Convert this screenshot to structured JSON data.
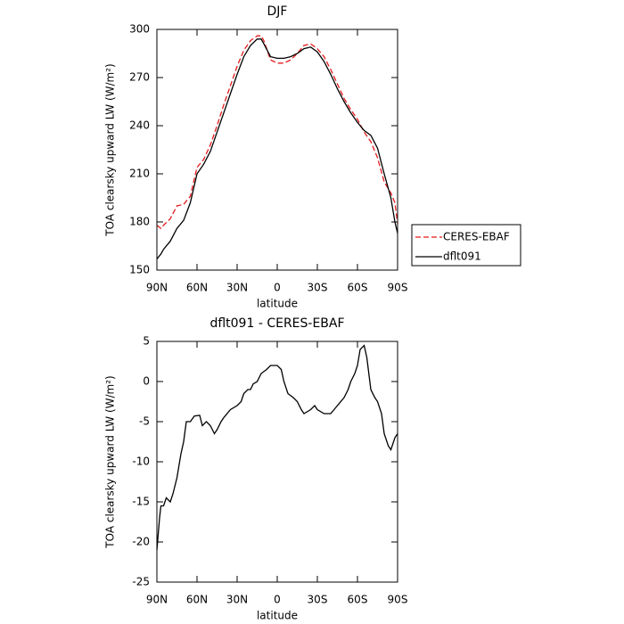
{
  "chart_data": [
    {
      "type": "line",
      "title": "DJF",
      "xlabel": "latitude",
      "ylabel": "TOA clearsky upward LW (W/m²)",
      "x": [
        90,
        87,
        85,
        80,
        75,
        70,
        65,
        60,
        55,
        50,
        45,
        40,
        35,
        30,
        25,
        20,
        15,
        12,
        10,
        5,
        0,
        -5,
        -10,
        -15,
        -20,
        -25,
        -30,
        -35,
        -40,
        -45,
        -50,
        -55,
        -60,
        -65,
        -70,
        -75,
        -80,
        -85,
        -88,
        -90
      ],
      "series": [
        {
          "name": "CERES-EBAF",
          "color": "#e41a1c",
          "dash": true,
          "values": [
            178,
            176,
            178,
            182,
            190,
            191,
            196,
            214,
            219,
            228,
            240,
            253,
            265,
            277,
            287,
            293,
            296,
            296,
            293,
            281,
            279,
            279,
            281,
            285,
            290,
            291,
            288,
            283,
            275,
            266,
            257,
            250,
            244,
            236,
            230,
            220,
            205,
            198,
            192,
            179
          ]
        },
        {
          "name": "dflt091",
          "color": "#000000",
          "dash": false,
          "values": [
            157,
            160,
            163,
            168,
            176,
            181,
            192,
            210,
            216,
            224,
            236,
            248,
            260,
            272,
            283,
            290,
            294,
            294,
            291,
            283,
            282,
            282,
            283,
            285,
            288,
            289,
            286,
            280,
            272,
            263,
            255,
            248,
            242,
            237,
            234,
            226,
            210,
            195,
            180,
            173
          ]
        }
      ],
      "xlim": [
        90,
        -90
      ],
      "xticks": [
        {
          "value": 90,
          "label": "90N"
        },
        {
          "value": 60,
          "label": "60N"
        },
        {
          "value": 30,
          "label": "30N"
        },
        0,
        {
          "value": -30,
          "label": "30S"
        },
        {
          "value": -60,
          "label": "60S"
        },
        {
          "value": -90,
          "label": "90S"
        }
      ],
      "ylim": [
        150,
        300
      ],
      "yticks": [
        150,
        180,
        210,
        240,
        270,
        300
      ]
    },
    {
      "type": "line",
      "title": "dflt091 - CERES-EBAF",
      "xlabel": "latitude",
      "ylabel": "TOA clearsky upward LW (W/m²)",
      "x": [
        90,
        88,
        87,
        85,
        83,
        80,
        78,
        75,
        72,
        70,
        68,
        65,
        62,
        58,
        56,
        53,
        50,
        47,
        45,
        42,
        40,
        35,
        30,
        27,
        25,
        22,
        20,
        18,
        15,
        12,
        8,
        5,
        0,
        -3,
        -5,
        -8,
        -12,
        -15,
        -18,
        -20,
        -25,
        -28,
        -30,
        -35,
        -40,
        -45,
        -50,
        -53,
        -55,
        -58,
        -60,
        -62,
        -65,
        -67,
        -70,
        -73,
        -75,
        -78,
        -80,
        -83,
        -85,
        -88,
        -90
      ],
      "values": [
        -21,
        -17,
        -15.5,
        -15.5,
        -14.5,
        -15,
        -14,
        -12,
        -9,
        -7.5,
        -5,
        -5,
        -4.3,
        -4.2,
        -5.5,
        -5,
        -5.5,
        -6.5,
        -6,
        -5,
        -4.5,
        -3.5,
        -3,
        -2.5,
        -1.5,
        -1,
        -1,
        -0.3,
        0,
        1,
        1.5,
        2,
        2,
        1.5,
        0,
        -1.5,
        -2,
        -2.5,
        -3.5,
        -4,
        -3.5,
        -3,
        -3.5,
        -4,
        -4,
        -3,
        -2,
        -1,
        0,
        1,
        2,
        4,
        4.5,
        3,
        -1,
        -2,
        -2.5,
        -4,
        -6.5,
        -8,
        -8.5,
        -7,
        -6.5
      ],
      "color": "#000000",
      "xlim": [
        90,
        -90
      ],
      "xticks": [
        {
          "value": 90,
          "label": "90N"
        },
        {
          "value": 60,
          "label": "60N"
        },
        {
          "value": 30,
          "label": "30N"
        },
        0,
        {
          "value": -30,
          "label": "30S"
        },
        {
          "value": -60,
          "label": "60S"
        },
        {
          "value": -90,
          "label": "90S"
        }
      ],
      "ylim": [
        -25,
        5
      ],
      "yticks": [
        -25,
        -20,
        -15,
        -10,
        -5,
        0,
        5
      ]
    }
  ]
}
